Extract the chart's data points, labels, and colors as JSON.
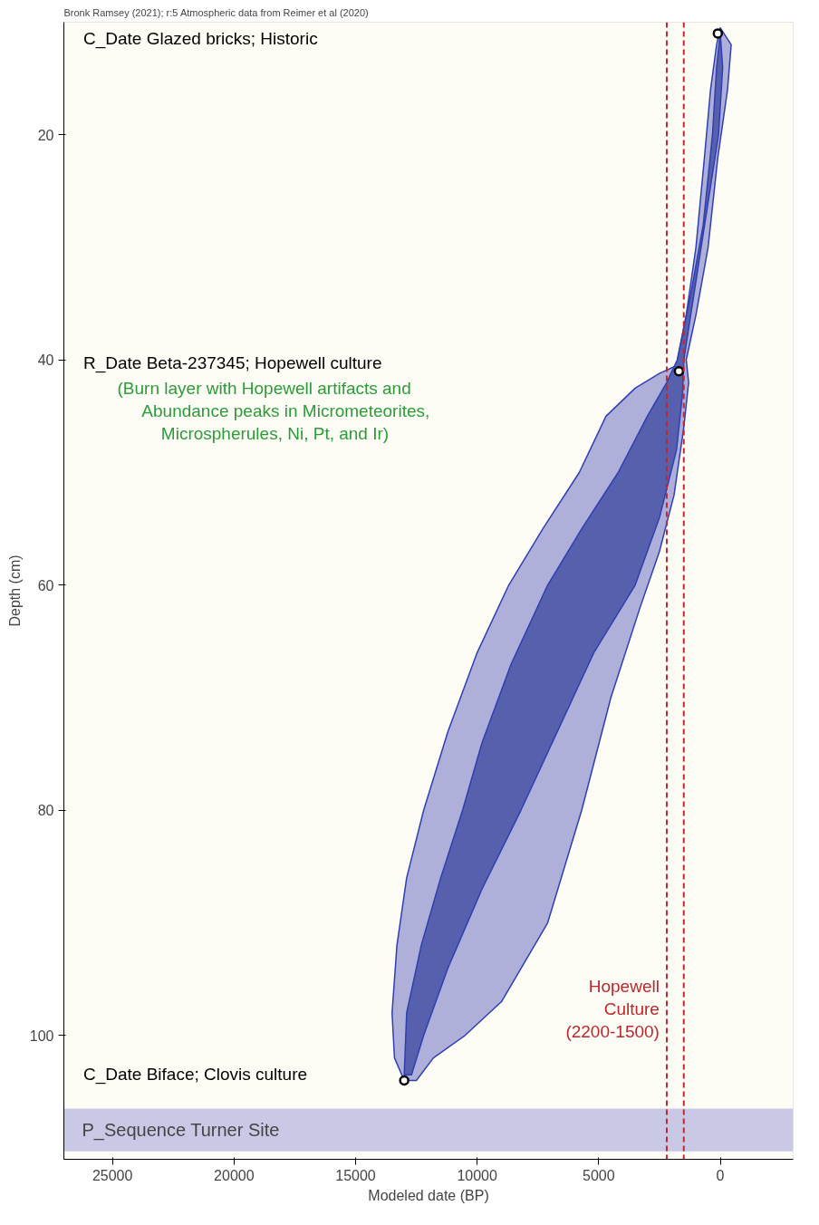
{
  "chart_data": {
    "type": "area",
    "title": "Bronk Ramsey (2021); r:5 Atmospheric data from Reimer et al (2020)",
    "xlabel": "Modeled date (BP)",
    "ylabel": "Depth (cm)",
    "xlim": [
      27000,
      -3000
    ],
    "ylim": [
      111,
      10
    ],
    "xticks": [
      25000,
      20000,
      15000,
      10000,
      5000,
      0
    ],
    "yticks": [
      20,
      40,
      60,
      80,
      100
    ],
    "grid": false,
    "series": [
      {
        "color": "#aeb0da",
        "x": [
          0,
          150,
          400,
          650,
          1000,
          1400,
          1800,
          2500,
          3500,
          4700,
          5800,
          7300,
          8700,
          10000,
          11200,
          12200,
          12900,
          13300,
          13500,
          13400,
          13000,
          12500,
          11800,
          10500,
          9000,
          7100,
          5700,
          4500,
          3300,
          2500,
          1900,
          1500,
          1300,
          1400,
          1000,
          500,
          100,
          -300,
          -450,
          0
        ],
        "values": [
          10.5,
          12,
          16,
          22,
          30,
          36,
          40.5,
          41.2,
          42.5,
          45,
          50,
          55,
          60,
          66,
          73,
          80,
          86,
          92,
          98,
          102,
          104,
          104,
          102,
          100,
          97,
          90,
          80,
          70,
          62,
          57,
          52,
          46,
          42,
          40,
          36,
          30,
          22,
          16,
          12,
          10.5
        ]
      },
      {
        "color": "#5660ad",
        "x": [
          0,
          150,
          320,
          700,
          1200,
          1770,
          2200,
          3000,
          4200,
          5700,
          7100,
          8600,
          9800,
          10600,
          11500,
          12300,
          12900,
          13000,
          12700,
          12200,
          11200,
          9800,
          8200,
          6700,
          5200,
          3500,
          2500,
          1800,
          1550,
          1500,
          1000,
          500,
          70,
          -100,
          0
        ],
        "values": [
          11,
          14,
          20,
          28,
          34,
          40,
          42,
          45,
          50,
          55,
          60,
          67,
          74,
          80,
          86,
          92,
          98,
          103.5,
          103.5,
          100,
          94,
          87,
          80,
          73,
          66,
          60,
          54,
          48,
          43,
          40,
          33,
          26,
          20,
          14,
          11
        ]
      },
      {
        "type": "scatter",
        "color": "#ffffff",
        "marker": "circle",
        "x": [
          100,
          1700,
          13000
        ],
        "values": [
          11,
          41,
          104
        ]
      }
    ],
    "ref_lines": [
      {
        "axis": "x",
        "value": 2200,
        "color": "#c0282d",
        "line_style": "dashed"
      },
      {
        "axis": "x",
        "value": 1500,
        "color": "#c0282d",
        "line_style": "dashed"
      }
    ],
    "bands": [
      {
        "axis": "y",
        "from": 106.5,
        "to": 110.3,
        "label": "P_Sequence Turner Site",
        "color": "#c9c9e6"
      }
    ],
    "annotations": [
      "C_Date Glazed bricks; Historic",
      "R_Date Beta-237345; Hopewell culture",
      "(Burn layer with Hopewell artifacts and",
      "Abundance peaks in Micrometeorites,",
      "Microspherules, Ni, Pt, and Ir)",
      "C_Date Biface; Clovis culture",
      "Hopewell",
      "Culture",
      "(2200-1500)"
    ]
  }
}
